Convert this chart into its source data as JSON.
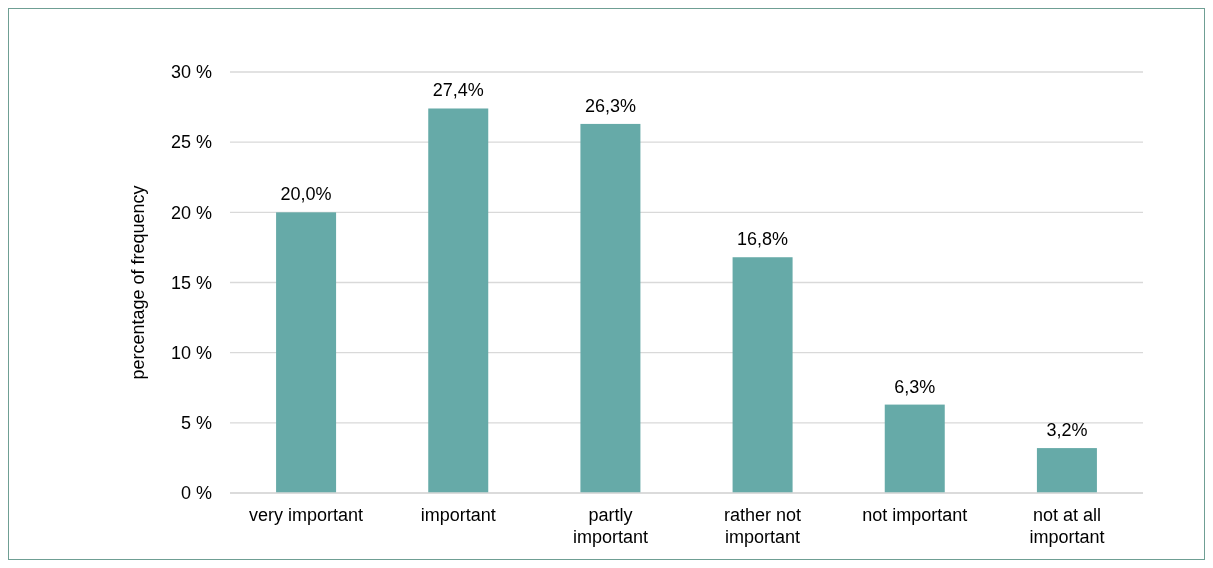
{
  "chart_data": {
    "type": "bar",
    "ylabel": "percentage of frequency",
    "categories": [
      "very important",
      "important",
      "partly important",
      "rather not important",
      "not important",
      "not at all important"
    ],
    "values": [
      20.0,
      27.4,
      26.3,
      16.8,
      6.3,
      3.2
    ],
    "value_labels": [
      "20,0%",
      "27,4%",
      "26,3%",
      "16,8%",
      "6,3%",
      "3,2%"
    ],
    "color": "#66aaa8",
    "ylim": [
      0,
      30
    ],
    "yticks": [
      {
        "value": 0,
        "label": "0 %"
      },
      {
        "value": 5,
        "label": "5 %"
      },
      {
        "value": 10,
        "label": "10 %"
      },
      {
        "value": 15,
        "label": "15 %"
      },
      {
        "value": 20,
        "label": "20 %"
      },
      {
        "value": 25,
        "label": "25 %"
      },
      {
        "value": 30,
        "label": "30 %"
      }
    ],
    "grid": "y"
  }
}
